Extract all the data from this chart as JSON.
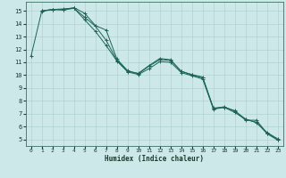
{
  "xlabel": "Humidex (Indice chaleur)",
  "bg_color": "#cce8e8",
  "grid_color": "#aacece",
  "line_color": "#1a6655",
  "xlim": [
    -0.5,
    23.5
  ],
  "ylim": [
    4.5,
    15.7
  ],
  "xticks": [
    0,
    1,
    2,
    3,
    4,
    5,
    6,
    7,
    8,
    9,
    10,
    11,
    12,
    13,
    14,
    15,
    16,
    17,
    18,
    19,
    20,
    21,
    22,
    23
  ],
  "yticks": [
    5,
    6,
    7,
    8,
    9,
    10,
    11,
    12,
    13,
    14,
    15
  ],
  "line1_x": [
    0,
    1,
    2,
    3,
    4,
    5,
    6,
    7,
    8,
    9,
    10,
    11,
    12,
    13,
    14,
    15,
    16,
    17,
    18,
    19,
    20,
    21,
    22,
    23
  ],
  "line1_y": [
    11.5,
    15.0,
    15.1,
    15.15,
    15.2,
    14.5,
    13.8,
    12.7,
    11.15,
    10.3,
    10.15,
    10.75,
    11.3,
    11.2,
    10.3,
    10.05,
    9.85,
    7.45,
    7.5,
    7.25,
    6.5,
    6.5,
    5.5,
    5.0
  ],
  "line2_x": [
    1,
    2,
    3,
    4,
    5,
    6,
    7,
    8,
    9,
    10,
    11,
    12,
    13,
    14,
    15,
    16,
    17,
    18,
    19,
    20,
    21,
    22,
    23
  ],
  "line2_y": [
    15.0,
    15.1,
    15.05,
    15.2,
    14.3,
    13.4,
    12.3,
    11.1,
    10.25,
    10.05,
    10.5,
    11.05,
    11.0,
    10.2,
    9.95,
    9.7,
    7.35,
    7.5,
    7.1,
    6.55,
    6.35,
    5.45,
    4.95
  ],
  "line3_x": [
    1,
    2,
    3,
    4,
    5,
    6,
    7,
    8,
    9,
    10,
    11,
    12,
    13,
    14,
    15,
    16,
    17,
    18,
    19,
    20,
    21,
    22,
    23
  ],
  "line3_y": [
    14.95,
    15.1,
    15.1,
    15.25,
    14.8,
    13.85,
    13.5,
    11.25,
    10.35,
    10.1,
    10.7,
    11.2,
    11.15,
    10.3,
    10.0,
    9.8,
    7.4,
    7.55,
    7.2,
    6.6,
    6.3,
    5.55,
    5.05
  ]
}
